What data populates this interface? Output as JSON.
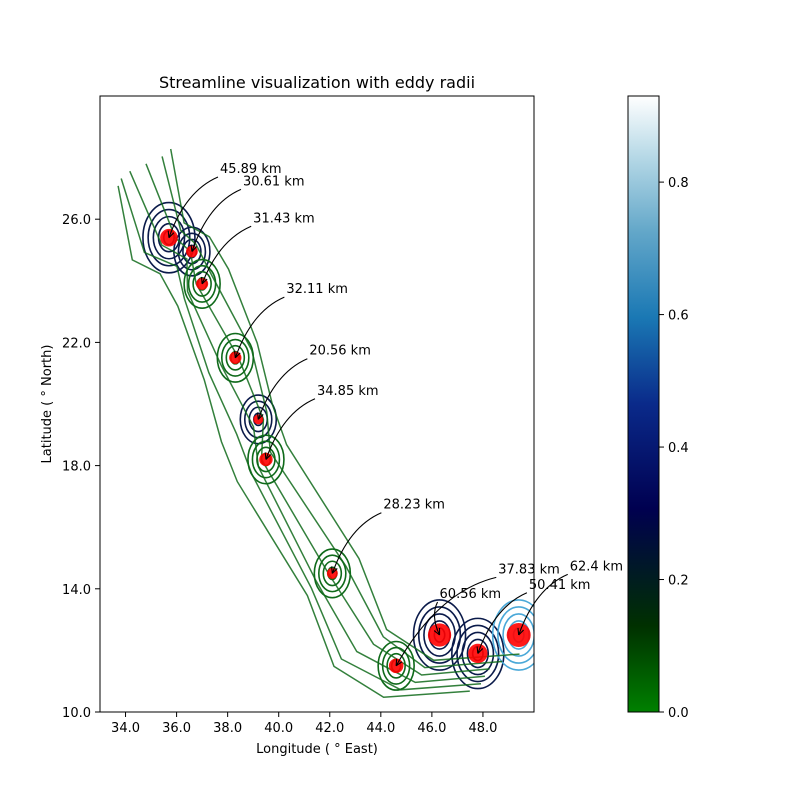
{
  "chart_data": {
    "type": "scatter",
    "title": "Streamline visualization with eddy radii",
    "xlabel": "Longitude ($^\\circ$East)",
    "ylabel": "Latitude ($^\\circ$North)",
    "xlabel_display": "Longitude ( ° East)",
    "ylabel_display": "Latitude ( ° North)",
    "xlim": [
      33.0,
      50.0
    ],
    "ylim": [
      10.0,
      30.0
    ],
    "xticks": [
      34.0,
      36.0,
      38.0,
      40.0,
      42.0,
      44.0,
      46.0,
      48.0
    ],
    "xtick_labels": [
      "34.0",
      "36.0",
      "38.0",
      "40.0",
      "42.0",
      "44.0",
      "46.0",
      "48.0"
    ],
    "yticks": [
      10.0,
      14.0,
      18.0,
      22.0,
      26.0
    ],
    "ytick_labels": [
      "10.0",
      "14.0",
      "18.0",
      "22.0",
      "26.0"
    ],
    "grid": false,
    "colorbar": {
      "range": [
        0.0,
        0.93
      ],
      "ticks": [
        0.0,
        0.2,
        0.4,
        0.6,
        0.8
      ],
      "tick_labels": [
        "0.0",
        "0.2",
        "0.4",
        "0.6",
        "0.8"
      ],
      "colormap": [
        "#008000",
        "#003000",
        "#000050",
        "#0a2a8a",
        "#1a78b4",
        "#63a7c9",
        "#b5d8e6",
        "#ffffff"
      ]
    },
    "eddy_color": "#ff0000",
    "stream_color_low": "#0f6a1a",
    "stream_color_mid": "#0a1a4a",
    "stream_color_high": "#4aa8d8",
    "eddies": [
      {
        "lon": 35.7,
        "lat": 25.4,
        "radius_km": 45.89,
        "label": "45.89 km",
        "text_lon": 37.7,
        "text_lat": 27.5
      },
      {
        "lon": 36.6,
        "lat": 24.95,
        "radius_km": 30.61,
        "label": "30.61 km",
        "text_lon": 38.6,
        "text_lat": 27.1
      },
      {
        "lon": 37.0,
        "lat": 23.9,
        "radius_km": 31.43,
        "label": "31.43 km",
        "text_lon": 39.0,
        "text_lat": 25.9
      },
      {
        "lon": 38.3,
        "lat": 21.5,
        "radius_km": 32.11,
        "label": "32.11 km",
        "text_lon": 40.3,
        "text_lat": 23.6
      },
      {
        "lon": 39.2,
        "lat": 19.5,
        "radius_km": 20.56,
        "label": "20.56 km",
        "text_lon": 41.2,
        "text_lat": 21.6
      },
      {
        "lon": 39.5,
        "lat": 18.2,
        "radius_km": 34.85,
        "label": "34.85 km",
        "text_lon": 41.5,
        "text_lat": 20.3
      },
      {
        "lon": 42.1,
        "lat": 14.5,
        "radius_km": 28.23,
        "label": "28.23 km",
        "text_lon": 44.1,
        "text_lat": 16.6
      },
      {
        "lon": 46.3,
        "lat": 12.5,
        "radius_km": 60.56,
        "label": "60.56 km",
        "text_lon": 46.3,
        "text_lat": 13.7
      },
      {
        "lon": 44.6,
        "lat": 11.5,
        "radius_km": 37.83,
        "label": "37.83 km",
        "text_lon": 48.6,
        "text_lat": 14.5
      },
      {
        "lon": 47.8,
        "lat": 11.9,
        "radius_km": 50.41,
        "label": "50.41 km",
        "text_lon": 49.8,
        "text_lat": 14.0
      },
      {
        "lon": 49.4,
        "lat": 12.5,
        "radius_km": 62.4,
        "label": "62.4 km",
        "text_lon": 51.4,
        "text_lat": 14.6
      }
    ]
  }
}
